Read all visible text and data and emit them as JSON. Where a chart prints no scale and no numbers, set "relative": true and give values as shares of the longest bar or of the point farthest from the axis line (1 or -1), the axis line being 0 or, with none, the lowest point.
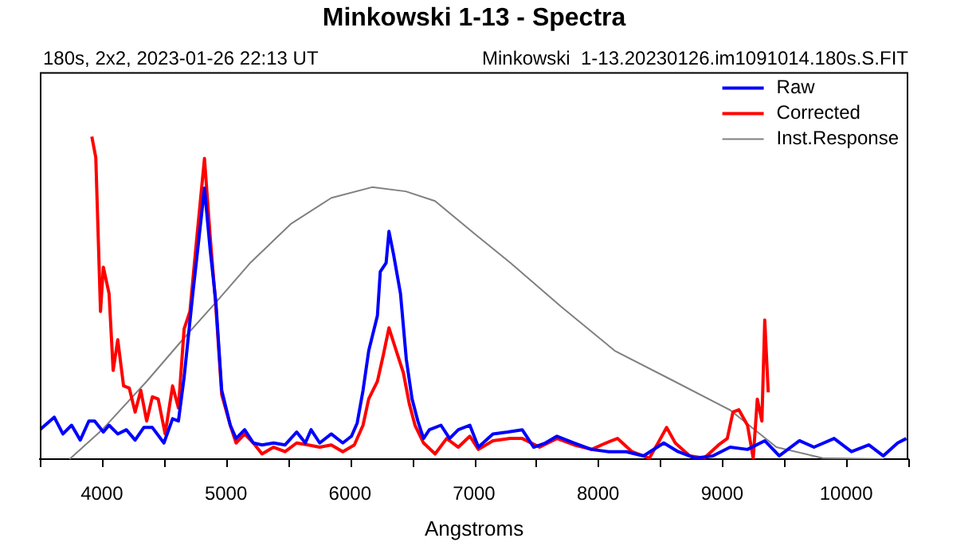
{
  "chart_data": {
    "type": "line",
    "title": "Minkowski 1-13 - Spectra",
    "subtitle": "180s, 2x2, 2023-01-26 22:13 UT",
    "annotations": [
      "Minkowski  1-13.20230126.im1091014.180s.S.FIT"
    ],
    "xlabel": "Angstroms",
    "relative": true,
    "xlim": [
      3500,
      10500
    ],
    "xticks": [
      {
        "value": 3500,
        "label": null
      },
      4000,
      {
        "value": 4500,
        "label": null
      },
      5000,
      {
        "value": 5500,
        "label": null
      },
      6000,
      {
        "value": 6500,
        "label": null
      },
      7000,
      {
        "value": 7500,
        "label": null
      },
      8000,
      {
        "value": 8500,
        "label": null
      },
      9000,
      {
        "value": 9500,
        "label": null
      },
      10000,
      {
        "value": 10500,
        "label": null
      }
    ],
    "grid": false,
    "legend": "top right",
    "marker": "none",
    "line_style": "solid",
    "series": [
      {
        "name": "Raw",
        "color": "#0000ff",
        "x": [
          3500,
          3616,
          3686,
          3756,
          3826,
          3895,
          3942,
          4012,
          4058,
          4128,
          4198,
          4268,
          4338,
          4407,
          4500,
          4570,
          4617,
          4663,
          4733,
          4780,
          4827,
          4873,
          4919,
          4966,
          5035,
          5082,
          5151,
          5221,
          5291,
          5384,
          5477,
          5570,
          5640,
          5686,
          5756,
          5849,
          5942,
          6012,
          6058,
          6105,
          6151,
          6221,
          6244,
          6291,
          6314,
          6351,
          6407,
          6454,
          6500,
          6547,
          6593,
          6640,
          6733,
          6803,
          6873,
          6966,
          7035,
          7152,
          7272,
          7388,
          7481,
          7575,
          7668,
          7807,
          7947,
          8086,
          8226,
          8366,
          8529,
          8645,
          8785,
          8924,
          9064,
          9204,
          9343,
          9460,
          9623,
          9740,
          9902,
          10042,
          10182,
          10298,
          10414,
          10484
        ],
        "values": [
          0.091,
          0.13,
          0.078,
          0.105,
          0.059,
          0.118,
          0.118,
          0.084,
          0.105,
          0.078,
          0.091,
          0.059,
          0.098,
          0.098,
          0.05,
          0.125,
          0.118,
          0.254,
          0.513,
          0.676,
          0.84,
          0.649,
          0.486,
          0.213,
          0.105,
          0.064,
          0.091,
          0.05,
          0.044,
          0.05,
          0.044,
          0.084,
          0.05,
          0.091,
          0.05,
          0.078,
          0.05,
          0.071,
          0.112,
          0.213,
          0.336,
          0.445,
          0.581,
          0.608,
          0.706,
          0.635,
          0.513,
          0.309,
          0.187,
          0.118,
          0.064,
          0.091,
          0.105,
          0.064,
          0.091,
          0.105,
          0.037,
          0.078,
          0.084,
          0.091,
          0.037,
          0.05,
          0.071,
          0.05,
          0.03,
          0.023,
          0.023,
          0.01,
          0.05,
          0.023,
          0.003,
          0.01,
          0.037,
          0.03,
          0.057,
          0.01,
          0.057,
          0.037,
          0.064,
          0.023,
          0.044,
          0.01,
          0.05,
          0.064
        ]
      },
      {
        "name": "Corrected",
        "color": "#ff0000",
        "x": [
          3919,
          3951,
          3989,
          4012,
          4058,
          4091,
          4128,
          4175,
          4221,
          4268,
          4314,
          4361,
          4407,
          4454,
          4510,
          4570,
          4617,
          4663,
          4710,
          4756,
          4827,
          4873,
          4919,
          4966,
          5035,
          5082,
          5151,
          5221,
          5291,
          5384,
          5477,
          5570,
          5663,
          5756,
          5849,
          5942,
          6035,
          6105,
          6151,
          6221,
          6268,
          6314,
          6361,
          6430,
          6477,
          6524,
          6593,
          6686,
          6779,
          6873,
          6966,
          7035,
          7152,
          7291,
          7388,
          7528,
          7668,
          7807,
          7947,
          8063,
          8156,
          8273,
          8413,
          8483,
          8552,
          8622,
          8738,
          8855,
          8971,
          9041,
          9087,
          9134,
          9204,
          9250,
          9283,
          9320,
          9343,
          9371
        ],
        "values": [
          1.0,
          0.935,
          0.458,
          0.595,
          0.513,
          0.275,
          0.37,
          0.227,
          0.22,
          0.146,
          0.213,
          0.118,
          0.193,
          0.186,
          0.078,
          0.227,
          0.159,
          0.404,
          0.458,
          0.649,
          0.932,
          0.69,
          0.472,
          0.2,
          0.105,
          0.05,
          0.078,
          0.05,
          0.016,
          0.037,
          0.023,
          0.05,
          0.044,
          0.037,
          0.044,
          0.023,
          0.044,
          0.105,
          0.187,
          0.241,
          0.322,
          0.407,
          0.35,
          0.268,
          0.173,
          0.105,
          0.05,
          0.016,
          0.064,
          0.037,
          0.071,
          0.03,
          0.057,
          0.064,
          0.064,
          0.037,
          0.064,
          0.044,
          0.03,
          0.05,
          0.064,
          0.023,
          0.003,
          0.05,
          0.098,
          0.05,
          0.01,
          0.003,
          0.044,
          0.064,
          0.146,
          0.153,
          0.105,
          0.003,
          0.186,
          0.118,
          0.431,
          0.207
        ]
      },
      {
        "name": "Inst.Response",
        "color": "#808080",
        "x": [
          3740,
          4000,
          4361,
          4650,
          4919,
          5200,
          5526,
          5850,
          6178,
          6450,
          6686,
          7000,
          7291,
          7700,
          8134,
          8600,
          9064,
          9437,
          9810,
          10300
        ],
        "values": [
          0,
          0.09,
          0.241,
          0.37,
          0.486,
          0.61,
          0.73,
          0.81,
          0.843,
          0.83,
          0.8,
          0.7,
          0.609,
          0.473,
          0.336,
          0.244,
          0.152,
          0.037,
          0.003,
          0
        ]
      }
    ]
  }
}
